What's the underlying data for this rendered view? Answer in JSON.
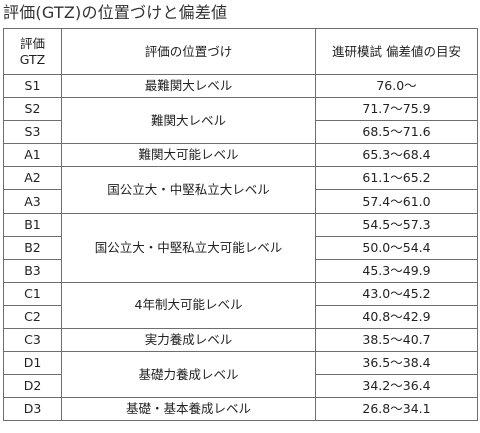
{
  "page": {
    "title": "評価(GTZ)の位置づけと偏差値"
  },
  "table": {
    "headers": {
      "grade_line1": "評価",
      "grade_line2": "GTZ",
      "position": "評価の位置づけ",
      "deviation": "進研模試 偏差値の目安"
    },
    "rows": [
      {
        "grade": "S1",
        "deviation": "76.0～"
      },
      {
        "grade": "S2",
        "deviation": "71.7～75.9"
      },
      {
        "grade": "S3",
        "deviation": "68.5～71.6"
      },
      {
        "grade": "A1",
        "deviation": "65.3～68.4"
      },
      {
        "grade": "A2",
        "deviation": "61.1～65.2"
      },
      {
        "grade": "A3",
        "deviation": "57.4～61.0"
      },
      {
        "grade": "B1",
        "deviation": "54.5～57.3"
      },
      {
        "grade": "B2",
        "deviation": "50.0～54.4"
      },
      {
        "grade": "B3",
        "deviation": "45.3～49.9"
      },
      {
        "grade": "C1",
        "deviation": "43.0～45.2"
      },
      {
        "grade": "C2",
        "deviation": "40.8～42.9"
      },
      {
        "grade": "C3",
        "deviation": "38.5～40.7"
      },
      {
        "grade": "D1",
        "deviation": "36.5～38.4"
      },
      {
        "grade": "D2",
        "deviation": "34.2～36.4"
      },
      {
        "grade": "D3",
        "deviation": "26.8～34.1"
      }
    ],
    "positions": [
      "最難関大レベル",
      "難関大レベル",
      "難関大可能レベル",
      "国公立大・中堅私立大レベル",
      "国公立大・中堅私立大可能レベル",
      "4年制大可能レベル",
      "実力養成レベル",
      "基礎力養成レベル",
      "基礎・基本養成レベル"
    ]
  }
}
